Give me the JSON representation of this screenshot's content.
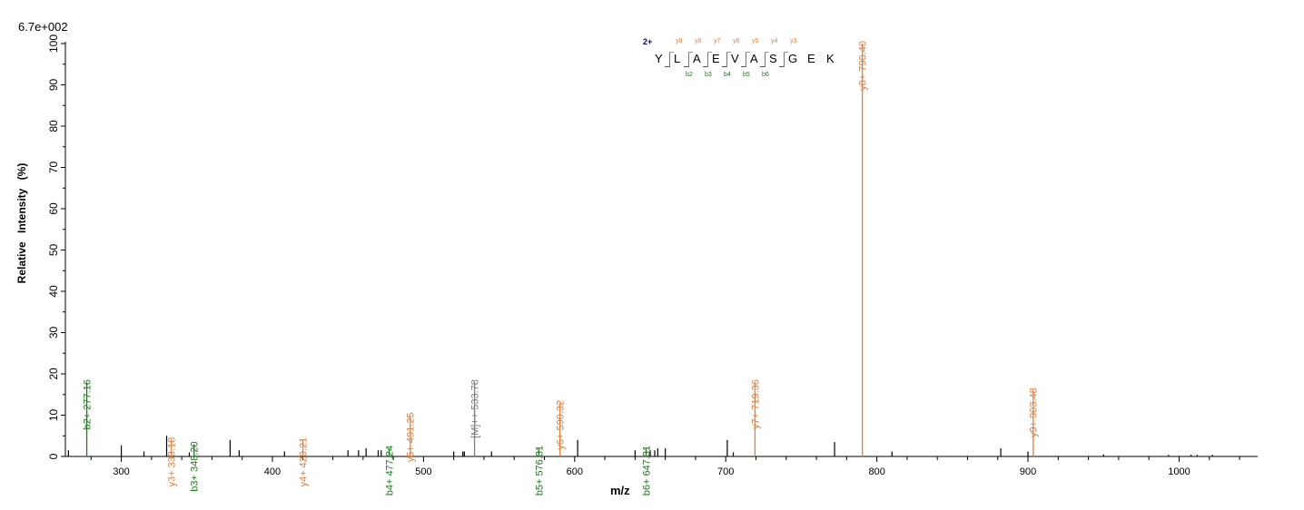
{
  "header": {
    "scale": "6.7e+002"
  },
  "sequence": {
    "charge": "2+",
    "residues": [
      "Y",
      "L",
      "A",
      "E",
      "V",
      "A",
      "S",
      "G",
      "E",
      "K"
    ],
    "y_labels": [
      "y9",
      "y8",
      "y7",
      "y6",
      "y5",
      "y4",
      "y3"
    ],
    "b_labels": [
      "b2",
      "b3",
      "b4",
      "b5",
      "b6"
    ]
  },
  "chart_data": {
    "type": "bar",
    "xlabel": "m/z",
    "ylabel": "Relative   Intensity (%)",
    "xlim": [
      263,
      1052
    ],
    "ylim": [
      0,
      100
    ],
    "xticks": [
      300,
      400,
      500,
      600,
      700,
      800,
      900,
      1000
    ],
    "yticks": [
      0,
      10,
      20,
      30,
      40,
      50,
      60,
      70,
      80,
      90,
      100
    ],
    "colors": {
      "y": "#e07f3f",
      "b": "#1c7a1c",
      "precursor": "#808080",
      "unassigned": "#000000"
    },
    "annotated_peaks": [
      {
        "mz": 277.16,
        "intensity": 18,
        "type": "b",
        "label": "b2+ 277.16"
      },
      {
        "mz": 333.18,
        "intensity": 4,
        "type": "y",
        "label": "y3+ 333.18"
      },
      {
        "mz": 348.2,
        "intensity": 3,
        "type": "b",
        "label": "b3+ 348.20"
      },
      {
        "mz": 420.21,
        "intensity": 4,
        "type": "y",
        "label": "y4+ 420.21"
      },
      {
        "mz": 477.24,
        "intensity": 2,
        "type": "b",
        "label": "b4+ 477.24"
      },
      {
        "mz": 491.25,
        "intensity": 10,
        "type": "y",
        "label": "y5+ 491.25"
      },
      {
        "mz": 533.78,
        "intensity": 18,
        "type": "precursor",
        "label": "[M]++ 533.78"
      },
      {
        "mz": 576.31,
        "intensity": 2,
        "type": "b",
        "label": "b5+ 576.31"
      },
      {
        "mz": 590.32,
        "intensity": 13,
        "type": "y",
        "label": "y6+ 590.32"
      },
      {
        "mz": 647.31,
        "intensity": 2,
        "type": "b",
        "label": "b6+ 647.31"
      },
      {
        "mz": 719.36,
        "intensity": 18,
        "type": "y",
        "label": "y7+ 719.36"
      },
      {
        "mz": 790.4,
        "intensity": 100,
        "type": "y",
        "label": "y8+ 790.40"
      },
      {
        "mz": 903.48,
        "intensity": 16,
        "type": "y",
        "label": "y9+ 903.48"
      }
    ],
    "other_peaks": [
      [
        265,
        1.5
      ],
      [
        300,
        2.7
      ],
      [
        315,
        1.2
      ],
      [
        330,
        5
      ],
      [
        345,
        1
      ],
      [
        372,
        4
      ],
      [
        378,
        1.5
      ],
      [
        408,
        1.2
      ],
      [
        450,
        1.5
      ],
      [
        457,
        1.5
      ],
      [
        462,
        2
      ],
      [
        470,
        1.5
      ],
      [
        472,
        1.5
      ],
      [
        520,
        1.2
      ],
      [
        526,
        1.2
      ],
      [
        527,
        1.2
      ],
      [
        545,
        1.2
      ],
      [
        602,
        4
      ],
      [
        640,
        1.5
      ],
      [
        650,
        1.5
      ],
      [
        653,
        1.5
      ],
      [
        655,
        2
      ],
      [
        660,
        2
      ],
      [
        701,
        4
      ],
      [
        705,
        1
      ],
      [
        772,
        3.5
      ],
      [
        810,
        1.2
      ],
      [
        882,
        2
      ],
      [
        900,
        1.2
      ],
      [
        950,
        0.5
      ],
      [
        993,
        0.4
      ],
      [
        1008,
        0.4
      ],
      [
        1012,
        0.4
      ],
      [
        1022,
        0.4
      ]
    ]
  }
}
